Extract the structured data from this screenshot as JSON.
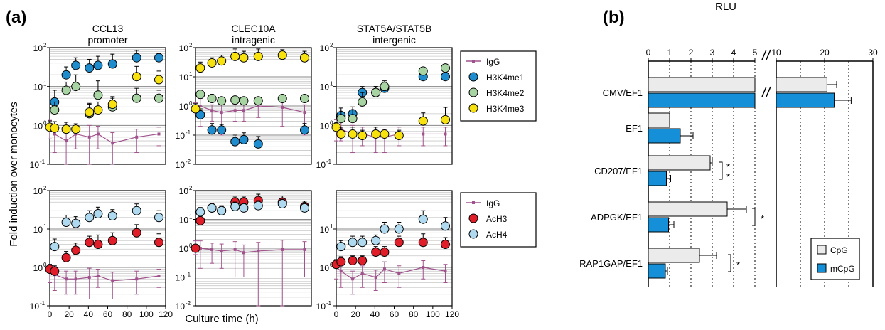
{
  "figure": {
    "label_a": "(a)",
    "label_b": "(b)",
    "ylabel_a": "Fold induction over monocytes",
    "xlabel_a": "Culture time (h)",
    "xlabel_b": "RLU"
  },
  "colors": {
    "IgG": "#a0528c",
    "H3K4me1": "#1f8dcd",
    "H3K4me2": "#a8d4a3",
    "H3K4me3": "#f7e10f",
    "AcH3": "#e01e2a",
    "AcH4": "#aed9ef",
    "CpG": "#ebebeb",
    "mCpG": "#1590d8"
  },
  "chart_data": [
    {
      "type": "scatter",
      "title": [
        "CCL13",
        "promoter"
      ],
      "yscale": "log",
      "ylim": [
        0.1,
        100
      ],
      "xlim": [
        0,
        120
      ],
      "yticks": [
        "10^2",
        "10^1",
        "10^0",
        "10^-1"
      ],
      "xticks": [],
      "series": [
        {
          "name": "IgG",
          "x": [
            0,
            5,
            17,
            27,
            41,
            50,
            65,
            90,
            113
          ],
          "y": [
            0.9,
            0.6,
            0.4,
            0.6,
            0.5,
            0.6,
            0.35,
            0.5,
            0.6
          ],
          "err": [
            0.45,
            0.4,
            0.3,
            0.35,
            0.5,
            0.35,
            0.3,
            0.3,
            0.3
          ]
        },
        {
          "name": "H3K4me1",
          "x": [
            5,
            17,
            27,
            41,
            50,
            65,
            90,
            113
          ],
          "y": [
            4,
            20,
            35,
            30,
            35,
            38,
            55,
            55
          ],
          "err": [
            4,
            12,
            20,
            20,
            25,
            30,
            30,
            15
          ]
        },
        {
          "name": "H3K4me2",
          "x": [
            5,
            17,
            27,
            41,
            50,
            65,
            90,
            113
          ],
          "y": [
            2.5,
            8,
            10,
            2,
            6,
            3,
            5,
            5
          ],
          "err": [
            1.5,
            5,
            10,
            1.5,
            8,
            2,
            4,
            3
          ]
        },
        {
          "name": "H3K4me3",
          "x": [
            0,
            5,
            17,
            27,
            41,
            50,
            65,
            90,
            113
          ],
          "y": [
            0.9,
            0.85,
            0.8,
            0.8,
            2.2,
            2.5,
            3.5,
            18,
            15
          ],
          "err": [
            0.4,
            0.4,
            0.4,
            0.3,
            1.5,
            1.5,
            2,
            15,
            10
          ]
        }
      ]
    },
    {
      "type": "scatter",
      "title": [
        "CLEC10A",
        "intragenic"
      ],
      "yscale": "log",
      "ylim": [
        0.01,
        100
      ],
      "xlim": [
        0,
        120
      ],
      "yticks": [
        "10^2",
        "10^1",
        "10^0",
        "10^-1",
        "10^-2"
      ],
      "xticks": [],
      "series": [
        {
          "name": "IgG",
          "x": [
            0,
            5,
            17,
            27,
            41,
            50,
            65,
            90,
            113
          ],
          "y": [
            0.9,
            1.0,
            0.7,
            0.6,
            0.7,
            0.7,
            1.0,
            0.9,
            0.6
          ],
          "err": [
            0.4,
            0.8,
            0.4,
            0.5,
            0.4,
            0.4,
            0.6,
            0.7,
            0.5
          ]
        },
        {
          "name": "H3K4me1",
          "x": [
            5,
            17,
            27,
            41,
            50,
            65,
            113
          ],
          "y": [
            0.5,
            0.15,
            0.15,
            0.06,
            0.07,
            0.05,
            0.15
          ],
          "err": [
            0.3,
            0.1,
            0.08,
            0.04,
            0.05,
            0.04,
            0.1
          ]
        },
        {
          "name": "H3K4me2",
          "x": [
            5,
            17,
            27,
            41,
            50,
            65,
            90,
            113
          ],
          "y": [
            2.5,
            1.8,
            1.5,
            1.6,
            1.5,
            1.5,
            1.8,
            1.8
          ],
          "err": [
            0.8,
            0.7,
            0.5,
            0.5,
            0.5,
            0.5,
            0.6,
            0.5
          ]
        },
        {
          "name": "H3K4me3",
          "x": [
            0,
            5,
            17,
            27,
            41,
            50,
            65,
            90,
            113
          ],
          "y": [
            0.8,
            20,
            30,
            35,
            50,
            45,
            50,
            55,
            45
          ],
          "err": [
            0.4,
            12,
            15,
            20,
            40,
            30,
            40,
            30,
            30
          ]
        }
      ]
    },
    {
      "type": "scatter",
      "title": [
        "STAT5A/STAT5B",
        "intergenic"
      ],
      "yscale": "log",
      "ylim": [
        0.1,
        100
      ],
      "xlim": [
        0,
        120
      ],
      "yticks": [
        "10^2",
        "10^1",
        "10^0",
        "10^-1"
      ],
      "xticks": [],
      "series": [
        {
          "name": "IgG",
          "x": [
            0,
            5,
            17,
            27,
            41,
            50,
            65,
            90,
            113
          ],
          "y": [
            0.9,
            0.8,
            0.6,
            0.6,
            0.5,
            0.5,
            0.6,
            0.6,
            0.6
          ],
          "err": [
            0.5,
            0.4,
            0.4,
            0.3,
            0.3,
            0.3,
            0.3,
            0.3,
            0.3
          ]
        },
        {
          "name": "H3K4me1",
          "x": [
            5,
            17,
            27,
            41,
            50,
            90,
            113
          ],
          "y": [
            1.8,
            2,
            7,
            7,
            9,
            18,
            18
          ],
          "err": [
            1,
            1,
            3,
            3,
            3,
            5,
            5
          ]
        },
        {
          "name": "H3K4me2",
          "x": [
            5,
            17,
            27,
            41,
            50,
            90,
            113
          ],
          "y": [
            1.5,
            1.5,
            4,
            7,
            10,
            25,
            30
          ],
          "err": [
            1,
            1,
            3,
            3,
            4,
            5,
            5
          ]
        },
        {
          "name": "H3K4me3",
          "x": [
            0,
            5,
            17,
            27,
            41,
            50,
            65,
            90,
            113
          ],
          "y": [
            0.9,
            0.6,
            0.6,
            0.55,
            0.6,
            0.6,
            0.55,
            1.3,
            1.4
          ],
          "err": [
            0.3,
            0.3,
            0.3,
            0.2,
            0.3,
            0.2,
            0.2,
            0.8,
            1.5
          ]
        }
      ]
    },
    {
      "type": "scatter",
      "yscale": "log",
      "ylim": [
        0.1,
        100
      ],
      "xlim": [
        0,
        120
      ],
      "yticks": [
        "10^2",
        "10^1",
        "10^0",
        "10^-1"
      ],
      "xticks": [
        "0",
        "20",
        "40",
        "60",
        "80",
        "100",
        "120"
      ],
      "series": [
        {
          "name": "IgG",
          "x": [
            0,
            5,
            17,
            27,
            41,
            50,
            65,
            90,
            113
          ],
          "y": [
            0.8,
            0.65,
            0.5,
            0.5,
            0.55,
            0.6,
            0.45,
            0.5,
            0.6
          ],
          "err": [
            0.4,
            0.4,
            0.3,
            0.3,
            0.4,
            0.3,
            0.3,
            0.3,
            0.3
          ]
        },
        {
          "name": "AcH3",
          "x": [
            0,
            5,
            17,
            27,
            41,
            50,
            65,
            90,
            113
          ],
          "y": [
            0.9,
            0.8,
            1.8,
            2.8,
            4.5,
            4,
            5,
            8,
            4.5
          ],
          "err": [
            0.3,
            0.3,
            0.8,
            1.5,
            2,
            3,
            3,
            5,
            3
          ]
        },
        {
          "name": "AcH4",
          "x": [
            5,
            17,
            27,
            41,
            50,
            65,
            90,
            113
          ],
          "y": [
            3.5,
            15,
            14,
            20,
            25,
            22,
            30,
            20
          ],
          "err": [
            2,
            8,
            7,
            10,
            12,
            10,
            15,
            10
          ]
        }
      ]
    },
    {
      "type": "scatter",
      "yscale": "log",
      "ylim": [
        0.01,
        100
      ],
      "xlim": [
        0,
        120
      ],
      "yticks": [
        "10^2",
        "10^1",
        "10^0",
        "10^-1",
        "10^-2"
      ],
      "xticks": [],
      "series": [
        {
          "name": "IgG",
          "x": [
            0,
            5,
            17,
            27,
            41,
            50,
            65,
            90,
            113
          ],
          "y": [
            1.2,
            1.0,
            0.9,
            0.8,
            0.9,
            0.7,
            0.8,
            0.9,
            0.9
          ],
          "err": [
            0.6,
            0.8,
            0.6,
            0.6,
            0.8,
            0.6,
            0.8,
            1.0,
            0.8
          ]
        },
        {
          "name": "AcH3",
          "x": [
            0,
            5,
            17,
            27,
            41,
            50,
            65,
            90,
            113
          ],
          "y": [
            1.0,
            9,
            25,
            20,
            40,
            40,
            45,
            40,
            28
          ],
          "err": [
            0.3,
            5,
            10,
            8,
            20,
            20,
            30,
            25,
            15
          ]
        },
        {
          "name": "AcH4",
          "x": [
            5,
            17,
            27,
            41,
            50,
            65,
            90,
            113
          ],
          "y": [
            18,
            25,
            20,
            28,
            25,
            30,
            35,
            25
          ],
          "err": [
            8,
            10,
            10,
            12,
            10,
            15,
            15,
            10
          ]
        }
      ]
    },
    {
      "type": "scatter",
      "yscale": "log",
      "ylim": [
        0.1,
        100
      ],
      "xlim": [
        0,
        120
      ],
      "yticks": [
        "10^1",
        "10^0",
        "10^-1"
      ],
      "xticks": [
        "0",
        "20",
        "40",
        "60",
        "80",
        "100",
        "120"
      ],
      "series": [
        {
          "name": "IgG",
          "x": [
            0,
            5,
            17,
            27,
            41,
            50,
            65,
            90,
            113
          ],
          "y": [
            1.0,
            0.8,
            0.5,
            0.7,
            0.55,
            0.9,
            0.7,
            1.0,
            0.8
          ],
          "err": [
            0.5,
            0.5,
            0.3,
            0.4,
            0.3,
            0.5,
            0.4,
            0.5,
            0.4
          ]
        },
        {
          "name": "AcH3",
          "x": [
            0,
            5,
            17,
            27,
            41,
            50,
            65,
            90,
            113
          ],
          "y": [
            1.2,
            1.4,
            1.5,
            1.5,
            2.5,
            2.5,
            4.5,
            4.5,
            4
          ],
          "err": [
            0.4,
            0.5,
            0.5,
            0.5,
            1,
            1,
            2,
            3,
            2
          ]
        },
        {
          "name": "AcH4",
          "x": [
            5,
            17,
            27,
            41,
            50,
            65,
            90,
            113
          ],
          "y": [
            3.5,
            4.5,
            4.5,
            5,
            10,
            10,
            18,
            12
          ],
          "err": [
            1.5,
            2,
            2,
            2,
            5,
            5,
            12,
            8
          ]
        }
      ]
    },
    {
      "type": "bar",
      "orientation": "horizontal",
      "xlabel": "RLU",
      "xticks_left": [
        "0",
        "1",
        "2",
        "3",
        "4",
        "5"
      ],
      "xticks_right": [
        "10",
        "20",
        "30"
      ],
      "categories": [
        "CMV/EF1",
        "EF1",
        "CD207/EF1",
        "ADPGK/EF1",
        "RAP1GAP/EF1"
      ],
      "series": [
        {
          "name": "CpG",
          "values": [
            20.5,
            1.0,
            2.9,
            3.7,
            2.4
          ],
          "err": [
            2.0,
            0.0,
            0.1,
            0.9,
            0.8
          ]
        },
        {
          "name": "mCpG",
          "values": [
            22.0,
            1.5,
            0.85,
            0.95,
            0.8
          ],
          "err": [
            3.5,
            0.6,
            0.2,
            0.25,
            0.1
          ]
        }
      ],
      "significance": [
        {
          "category": "CD207/EF1",
          "mark": "**"
        },
        {
          "category": "ADPGK/EF1",
          "mark": "*"
        },
        {
          "category": "RAP1GAP/EF1",
          "mark": "*"
        }
      ]
    }
  ],
  "legend_top": {
    "entries": [
      "IgG",
      "H3K4me1",
      "H3K4me2",
      "H3K4me3"
    ]
  },
  "legend_bottom": {
    "entries": [
      "IgG",
      "AcH3",
      "AcH4"
    ]
  },
  "legend_b": {
    "entries": [
      "CpG",
      "mCpG"
    ]
  }
}
